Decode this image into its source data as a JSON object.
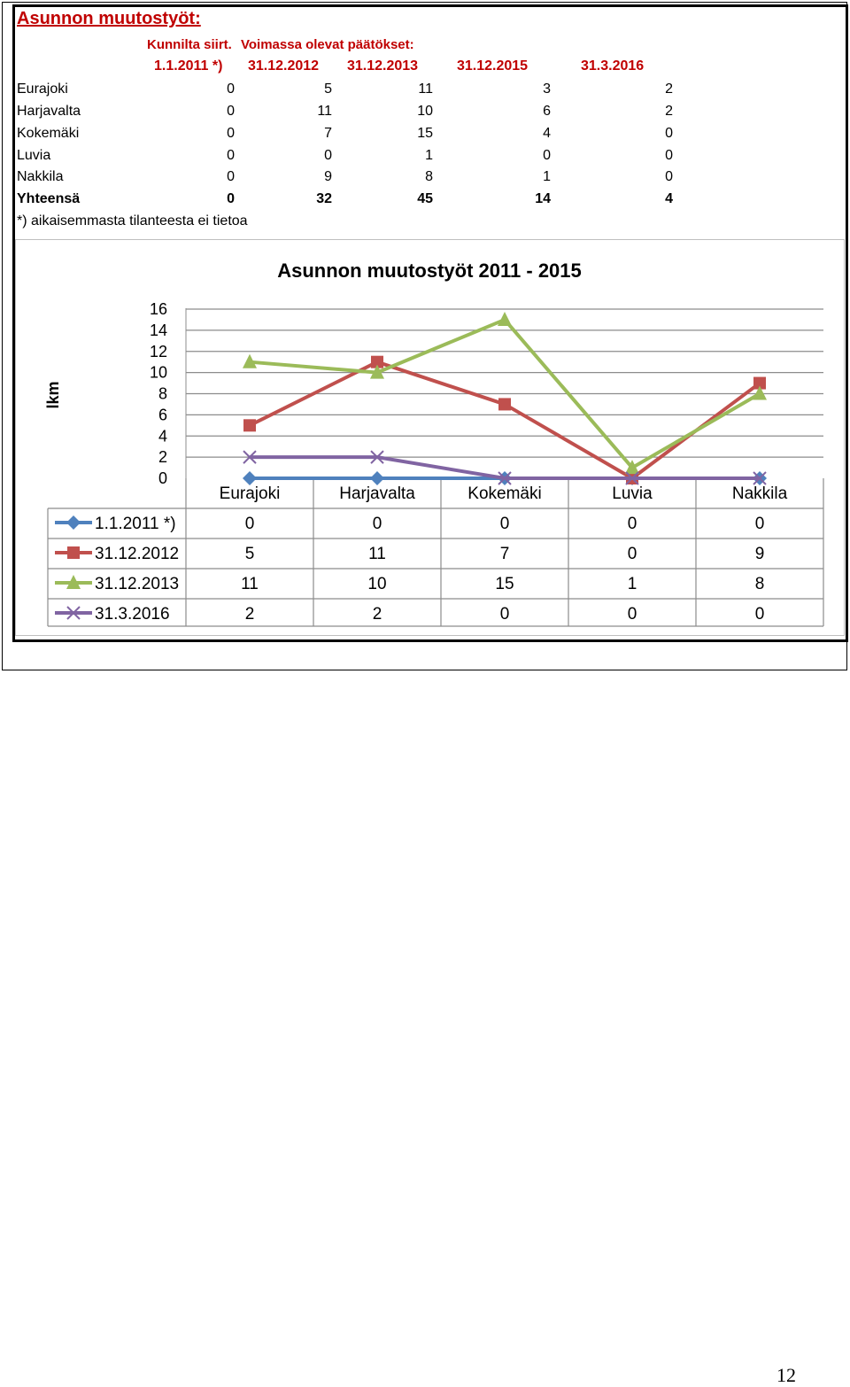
{
  "table": {
    "title": "Asunnon muutostyöt:",
    "group_label_1": "Kunnilta siirt.",
    "group_label_2": "Voimassa olevat päätökset:",
    "columns": [
      "1.1.2011 *)",
      "31.12.2012",
      "31.12.2013",
      "31.12.2015",
      "31.3.2016"
    ],
    "rows": [
      {
        "name": "Eurajoki",
        "values": [
          "0",
          "5",
          "11",
          "3",
          "2"
        ]
      },
      {
        "name": "Harjavalta",
        "values": [
          "0",
          "11",
          "10",
          "6",
          "2"
        ]
      },
      {
        "name": "Kokemäki",
        "values": [
          "0",
          "7",
          "15",
          "4",
          "0"
        ]
      },
      {
        "name": "Luvia",
        "values": [
          "0",
          "0",
          "1",
          "0",
          "0"
        ]
      },
      {
        "name": "Nakkila",
        "values": [
          "0",
          "9",
          "8",
          "1",
          "0"
        ]
      }
    ],
    "total": {
      "name": "Yhteensä",
      "values": [
        "0",
        "32",
        "45",
        "14",
        "4"
      ]
    },
    "footnote": "*) aikaisemmasta tilanteesta ei tietoa"
  },
  "chart_data": {
    "type": "line",
    "title": "Asunnon muutostyöt 2011 - 2015",
    "ylabel": "lkm",
    "xlabel": "",
    "categories": [
      "Eurajoki",
      "Harjavalta",
      "Kokemäki",
      "Luvia",
      "Nakkila"
    ],
    "ylim": [
      0,
      16
    ],
    "yticks": [
      "0",
      "2",
      "4",
      "6",
      "8",
      "10",
      "12",
      "14",
      "16"
    ],
    "grid": true,
    "legend": "data-table-below",
    "series": [
      {
        "name": "1.1.2011 *)",
        "values": [
          0,
          0,
          0,
          0,
          0
        ],
        "color": "#4f81bd",
        "marker": "diamond"
      },
      {
        "name": "31.12.2012",
        "values": [
          5,
          11,
          7,
          0,
          9
        ],
        "color": "#c0504d",
        "marker": "square"
      },
      {
        "name": "31.12.2013",
        "values": [
          11,
          10,
          15,
          1,
          8
        ],
        "color": "#9bbb59",
        "marker": "triangle"
      },
      {
        "name": "31.3.2016",
        "values": [
          2,
          2,
          0,
          0,
          0
        ],
        "color": "#8064a2",
        "marker": "x"
      }
    ]
  },
  "page": {
    "number": "12"
  }
}
